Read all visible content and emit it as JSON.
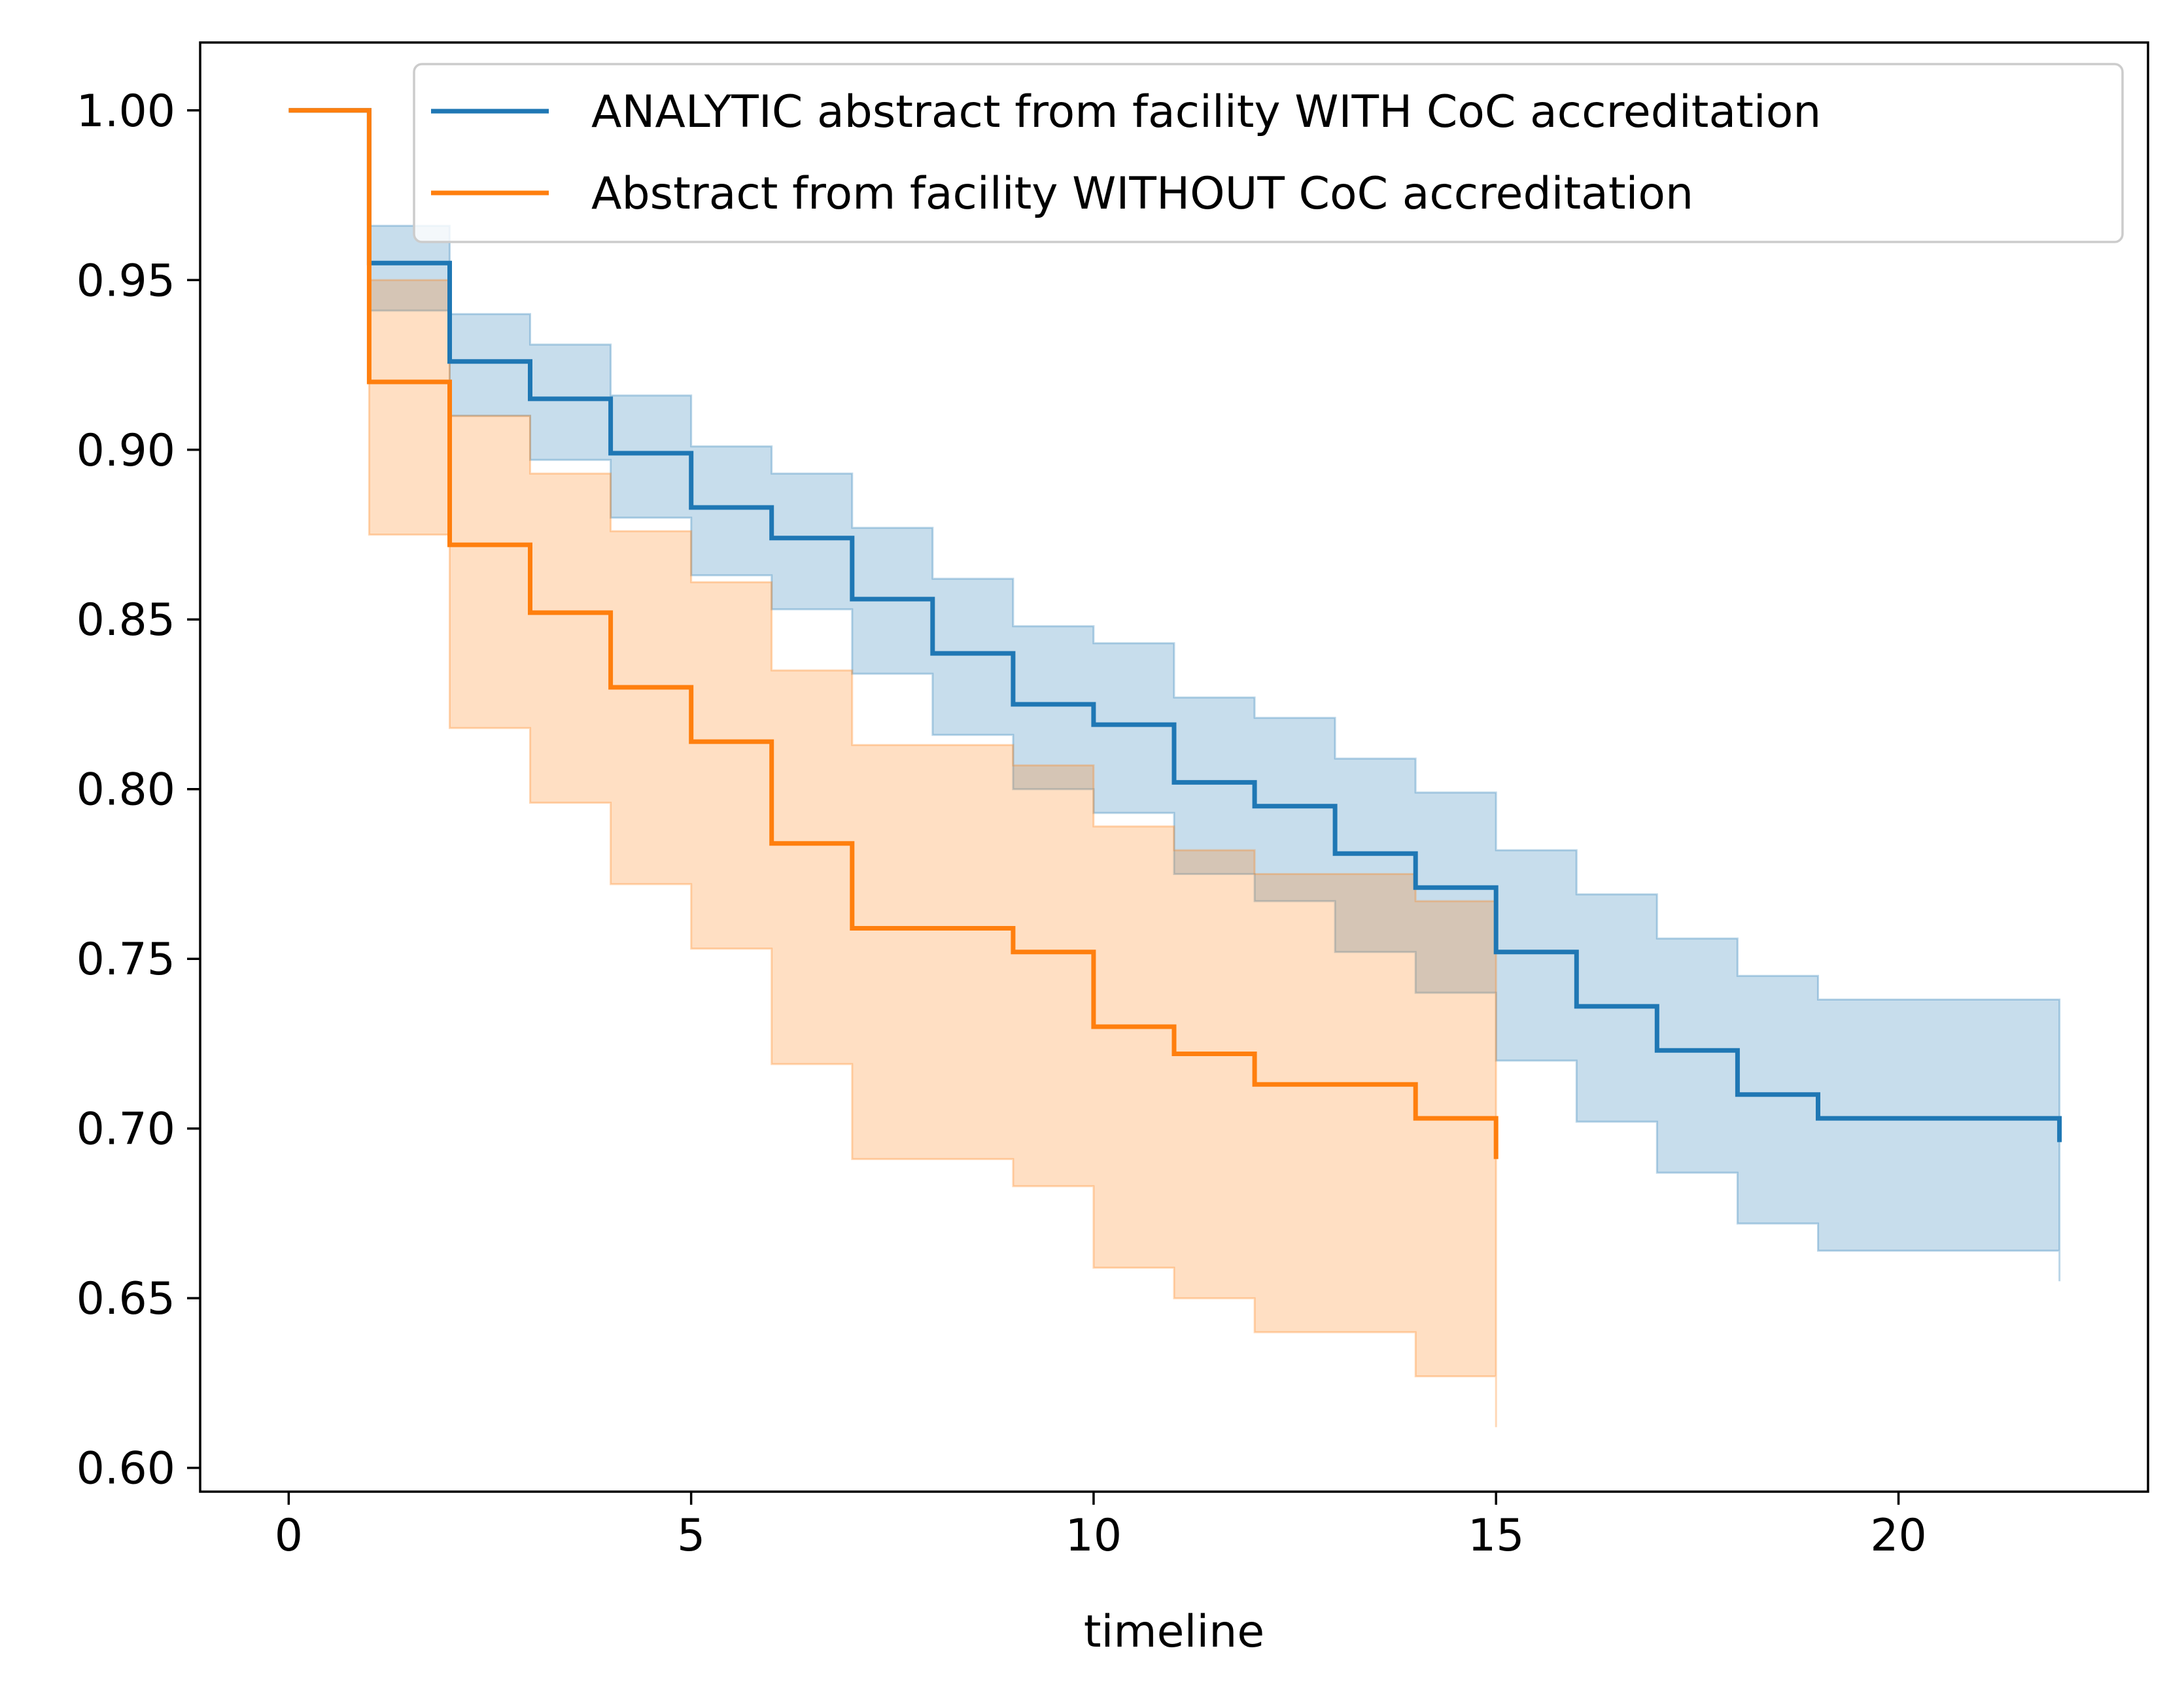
{
  "chart_data": {
    "type": "line",
    "step": "post",
    "title": "",
    "xlabel": "timeline",
    "ylabel": "",
    "xlim": [
      -1.1,
      23.1
    ],
    "ylim": [
      0.593,
      1.02
    ],
    "xticks": [
      0,
      5,
      10,
      15,
      20
    ],
    "yticks": [
      0.6,
      0.65,
      0.7,
      0.75,
      0.8,
      0.85,
      0.9,
      0.95,
      1.0
    ],
    "xtick_labels": [
      "0",
      "5",
      "10",
      "15",
      "20"
    ],
    "ytick_labels": [
      "0.60",
      "0.65",
      "0.70",
      "0.75",
      "0.80",
      "0.85",
      "0.90",
      "0.95",
      "1.00"
    ],
    "grid": false,
    "legend_position": "upper-right",
    "series": [
      {
        "name": "ANALYTIC abstract from facility WITH CoC accreditation",
        "color": "#1f77b4",
        "x": [
          0,
          1,
          2,
          3,
          4,
          5,
          6,
          7,
          8,
          9,
          10,
          11,
          12,
          13,
          14,
          15,
          16,
          17,
          18,
          19,
          22
        ],
        "y": [
          1.0,
          0.955,
          0.926,
          0.915,
          0.899,
          0.883,
          0.874,
          0.856,
          0.84,
          0.825,
          0.819,
          0.802,
          0.795,
          0.781,
          0.771,
          0.752,
          0.736,
          0.723,
          0.71,
          0.703,
          0.696
        ],
        "ci_lower": [
          1.0,
          0.941,
          0.91,
          0.897,
          0.88,
          0.863,
          0.853,
          0.834,
          0.816,
          0.8,
          0.793,
          0.775,
          0.767,
          0.752,
          0.74,
          0.72,
          0.702,
          0.687,
          0.672,
          0.664,
          0.655
        ],
        "ci_upper": [
          1.0,
          0.966,
          0.94,
          0.931,
          0.916,
          0.901,
          0.893,
          0.877,
          0.862,
          0.848,
          0.843,
          0.827,
          0.821,
          0.809,
          0.799,
          0.782,
          0.769,
          0.756,
          0.745,
          0.738,
          0.738
        ]
      },
      {
        "name": "Abstract from facility WITHOUT CoC accreditation",
        "color": "#ff7f0e",
        "x": [
          0,
          1,
          2,
          3,
          4,
          5,
          6,
          7,
          8,
          9,
          10,
          11,
          12,
          13,
          14,
          15
        ],
        "y": [
          1.0,
          0.92,
          0.872,
          0.852,
          0.83,
          0.814,
          0.784,
          0.759,
          0.759,
          0.752,
          0.73,
          0.722,
          0.713,
          0.713,
          0.703,
          0.691
        ],
        "ci_lower": [
          1.0,
          0.875,
          0.818,
          0.796,
          0.772,
          0.753,
          0.719,
          0.691,
          0.691,
          0.683,
          0.659,
          0.65,
          0.64,
          0.64,
          0.627,
          0.612
        ],
        "ci_upper": [
          1.0,
          0.95,
          0.91,
          0.893,
          0.876,
          0.861,
          0.835,
          0.813,
          0.813,
          0.807,
          0.789,
          0.782,
          0.775,
          0.775,
          0.767,
          0.767
        ]
      }
    ]
  }
}
